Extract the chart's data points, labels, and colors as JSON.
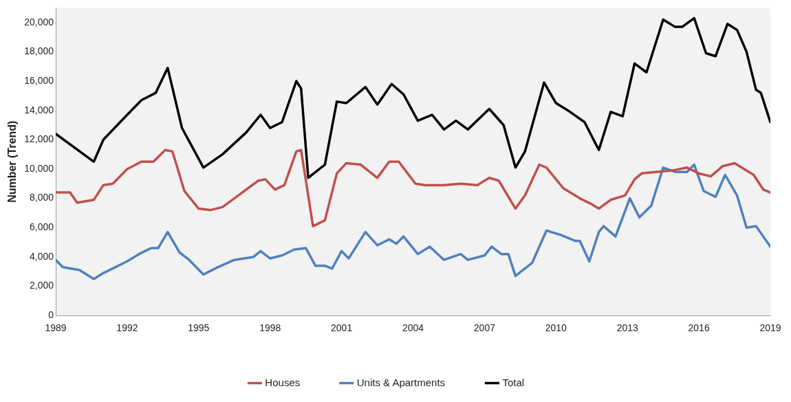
{
  "chart_data": {
    "type": "line",
    "ylabel": "Number (Trend)",
    "xlim": [
      1989,
      2019
    ],
    "xticks": [
      1989,
      1992,
      1995,
      1998,
      2001,
      2004,
      2007,
      2010,
      2013,
      2016,
      2019
    ],
    "ylim": [
      0,
      21000
    ],
    "yticks": [
      {
        "value": 0,
        "label": "0"
      },
      {
        "value": 2000,
        "label": "2,000"
      },
      {
        "value": 4000,
        "label": "4,000"
      },
      {
        "value": 6000,
        "label": "6,000"
      },
      {
        "value": 8000,
        "label": "8,000"
      },
      {
        "value": 10000,
        "label": "10,000"
      },
      {
        "value": 12000,
        "label": "12,000"
      },
      {
        "value": 14000,
        "label": "14,000"
      },
      {
        "value": 16000,
        "label": "16,000"
      },
      {
        "value": 18000,
        "label": "18,000"
      },
      {
        "value": 20000,
        "label": "20,000"
      }
    ],
    "grid": false,
    "legend": "bottom",
    "marker": "none",
    "line_style": "solid",
    "series": [
      {
        "name": "Houses",
        "color": "#c0504d",
        "x": [
          1989,
          1989.6,
          1989.9,
          1990.6,
          1991,
          1991.4,
          1992,
          1992.6,
          1993.1,
          1993.6,
          1993.9,
          1994.4,
          1995,
          1995.5,
          1996,
          1996.5,
          1997.5,
          1997.8,
          1998.2,
          1998.6,
          1999.1,
          1999.3,
          1999.8,
          2000.3,
          2000.8,
          2001.2,
          2001.8,
          2002.5,
          2003,
          2003.4,
          2004.1,
          2004.5,
          2005.3,
          2006,
          2006.7,
          2007.2,
          2007.6,
          2008.3,
          2008.7,
          2009.3,
          2009.6,
          2010.3,
          2011,
          2011.5,
          2011.8,
          2012.3,
          2012.9,
          2013.3,
          2013.6,
          2014.2,
          2014.9,
          2015.5,
          2016,
          2016.5,
          2017,
          2017.5,
          2018.3,
          2018.7,
          2019
        ],
        "values": [
          8400,
          8400,
          7700,
          7900,
          8900,
          9000,
          10000,
          10500,
          10500,
          11300,
          11200,
          8500,
          7300,
          7200,
          7400,
          8000,
          9200,
          9300,
          8600,
          8900,
          11200,
          11300,
          6100,
          6500,
          9700,
          10400,
          10300,
          9400,
          10500,
          10500,
          9000,
          8900,
          8900,
          9000,
          8900,
          9400,
          9200,
          7300,
          8200,
          10300,
          10100,
          8700,
          8000,
          7600,
          7300,
          7900,
          8200,
          9300,
          9700,
          9800,
          9900,
          10100,
          9700,
          9500,
          10200,
          10400,
          9600,
          8600,
          8400
        ]
      },
      {
        "name": "Units & Apartments",
        "color": "#4f81bd",
        "x": [
          1989,
          1989.3,
          1990,
          1990.6,
          1991,
          1991.5,
          1992,
          1992.5,
          1993,
          1993.3,
          1993.7,
          1994.2,
          1994.6,
          1995.2,
          1995.8,
          1996.5,
          1997.3,
          1997.6,
          1998,
          1998.5,
          1999,
          1999.5,
          1999.9,
          2000.3,
          2000.6,
          2001,
          2001.3,
          2002,
          2002.5,
          2003,
          2003.3,
          2003.6,
          2004.2,
          2004.7,
          2005.3,
          2006,
          2006.3,
          2007,
          2007.3,
          2007.7,
          2008,
          2008.3,
          2009,
          2009.6,
          2010.2,
          2010.8,
          2011,
          2011.4,
          2011.8,
          2012,
          2012.5,
          2013.1,
          2013.5,
          2014,
          2014.5,
          2015,
          2015.5,
          2015.8,
          2016.2,
          2016.7,
          2017.1,
          2017.6,
          2018,
          2018.4,
          2019
        ],
        "values": [
          3800,
          3300,
          3100,
          2500,
          2900,
          3300,
          3700,
          4200,
          4600,
          4600,
          5700,
          4300,
          3800,
          2800,
          3300,
          3800,
          4000,
          4400,
          3900,
          4100,
          4500,
          4600,
          3400,
          3400,
          3200,
          4400,
          3900,
          5700,
          4800,
          5200,
          4900,
          5400,
          4200,
          4700,
          3800,
          4200,
          3800,
          4100,
          4700,
          4200,
          4200,
          2700,
          3600,
          5800,
          5500,
          5100,
          5100,
          3700,
          5700,
          6100,
          5400,
          8000,
          6700,
          7500,
          10100,
          9800,
          9800,
          10300,
          8500,
          8100,
          9600,
          8200,
          6000,
          6100,
          4700
        ]
      },
      {
        "name": "Total",
        "color": "#000000",
        "x": [
          1989,
          1990.6,
          1991,
          1992,
          1992.6,
          1993.2,
          1993.7,
          1994.3,
          1995.2,
          1996,
          1997,
          1997.6,
          1998,
          1998.5,
          1999.1,
          1999.3,
          1999.6,
          2000.3,
          2000.8,
          2001.2,
          2002,
          2002.5,
          2003.1,
          2003.6,
          2004.2,
          2004.8,
          2005.3,
          2005.8,
          2006.3,
          2007.2,
          2007.8,
          2008.3,
          2008.7,
          2009.5,
          2010,
          2010.5,
          2011.2,
          2011.8,
          2012.3,
          2012.8,
          2013.3,
          2013.8,
          2014.5,
          2015,
          2015.3,
          2015.8,
          2016.3,
          2016.7,
          2017.2,
          2017.6,
          2018,
          2018.4,
          2018.6,
          2019
        ],
        "values": [
          12400,
          10500,
          12000,
          13700,
          14700,
          15200,
          16900,
          12800,
          10100,
          11000,
          12500,
          13700,
          12800,
          13200,
          16000,
          15500,
          9400,
          10300,
          14600,
          14500,
          15600,
          14400,
          15800,
          15100,
          13300,
          13700,
          12700,
          13300,
          12700,
          14100,
          13000,
          10100,
          11200,
          15900,
          14500,
          14000,
          13200,
          11300,
          13900,
          13600,
          17200,
          16600,
          20200,
          19700,
          19700,
          20300,
          17900,
          17700,
          19900,
          19500,
          18000,
          15400,
          15200,
          13200
        ]
      }
    ]
  }
}
